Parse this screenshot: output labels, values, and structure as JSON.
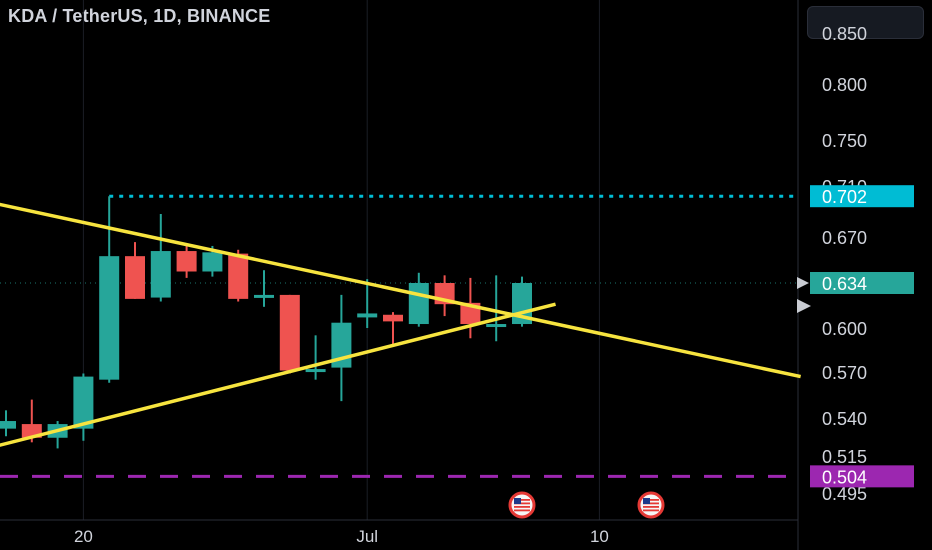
{
  "header": {
    "title": "KDA / TetherUS, 1D, BINANCE"
  },
  "colors": {
    "background": "#000000",
    "up": "#26a69a",
    "down": "#ef5350",
    "trendline": "#f7e43f",
    "resistance": "#00bcd4",
    "support": "#9c27b0",
    "axis_text": "#d1d4dc",
    "grid": "#1b1e25"
  },
  "chart_data": {
    "type": "candlestick",
    "title": "KDA / TetherUS, 1D, BINANCE",
    "y_ticks": [
      "0.850",
      "0.800",
      "0.750",
      "0.710",
      "0.670",
      "0.634",
      "0.600",
      "0.570",
      "0.540",
      "0.515",
      "0.495"
    ],
    "x_ticks": [
      {
        "label": "20",
        "index": 3
      },
      {
        "label": "Jul",
        "index": 14
      },
      {
        "label": "10",
        "index": 23
      }
    ],
    "candles": [
      {
        "open": 0.533,
        "high": 0.545,
        "low": 0.528,
        "close": 0.538
      },
      {
        "open": 0.536,
        "high": 0.552,
        "low": 0.524,
        "close": 0.527
      },
      {
        "open": 0.527,
        "high": 0.538,
        "low": 0.52,
        "close": 0.536
      },
      {
        "open": 0.533,
        "high": 0.569,
        "low": 0.525,
        "close": 0.567
      },
      {
        "open": 0.565,
        "high": 0.702,
        "low": 0.563,
        "close": 0.655
      },
      {
        "open": 0.655,
        "high": 0.666,
        "low": 0.622,
        "close": 0.622
      },
      {
        "open": 0.623,
        "high": 0.688,
        "low": 0.62,
        "close": 0.659
      },
      {
        "open": 0.659,
        "high": 0.665,
        "low": 0.638,
        "close": 0.643
      },
      {
        "open": 0.643,
        "high": 0.663,
        "low": 0.639,
        "close": 0.658
      },
      {
        "open": 0.657,
        "high": 0.66,
        "low": 0.62,
        "close": 0.622
      },
      {
        "open": 0.623,
        "high": 0.644,
        "low": 0.616,
        "close": 0.625
      },
      {
        "open": 0.625,
        "high": 0.625,
        "low": 0.569,
        "close": 0.571
      },
      {
        "open": 0.571,
        "high": 0.595,
        "low": 0.565,
        "close": 0.572
      },
      {
        "open": 0.573,
        "high": 0.625,
        "low": 0.551,
        "close": 0.604
      },
      {
        "open": 0.608,
        "high": 0.637,
        "low": 0.6,
        "close": 0.611
      },
      {
        "open": 0.61,
        "high": 0.612,
        "low": 0.588,
        "close": 0.605
      },
      {
        "open": 0.603,
        "high": 0.642,
        "low": 0.601,
        "close": 0.634
      },
      {
        "open": 0.634,
        "high": 0.64,
        "low": 0.609,
        "close": 0.618
      },
      {
        "open": 0.619,
        "high": 0.638,
        "low": 0.593,
        "close": 0.603
      },
      {
        "open": 0.602,
        "high": 0.64,
        "low": 0.591,
        "close": 0.603
      },
      {
        "open": 0.603,
        "high": 0.639,
        "low": 0.601,
        "close": 0.634
      }
    ],
    "horizontal_lines": [
      {
        "value": 0.702,
        "label": "0.702",
        "style": "dotted",
        "color": "#00bcd4"
      },
      {
        "value": 0.504,
        "label": "0.504",
        "style": "dashed",
        "color": "#9c27b0"
      },
      {
        "value": 0.634,
        "label": "0.634",
        "style": "faint-dotted",
        "color": "#26a69a"
      }
    ],
    "trendlines": [
      {
        "name": "descending",
        "points": [
          [
            -4.4,
            0.714
          ],
          [
            30.8,
            0.567
          ]
        ]
      },
      {
        "name": "ascending",
        "points": [
          [
            -0.5,
            0.521
          ],
          [
            21.3,
            0.618
          ]
        ]
      }
    ],
    "event_markers": [
      {
        "index": 20
      },
      {
        "index": 25
      }
    ],
    "price_tag": {
      "value": 0.634,
      "label": "0.634"
    },
    "grid": true
  }
}
